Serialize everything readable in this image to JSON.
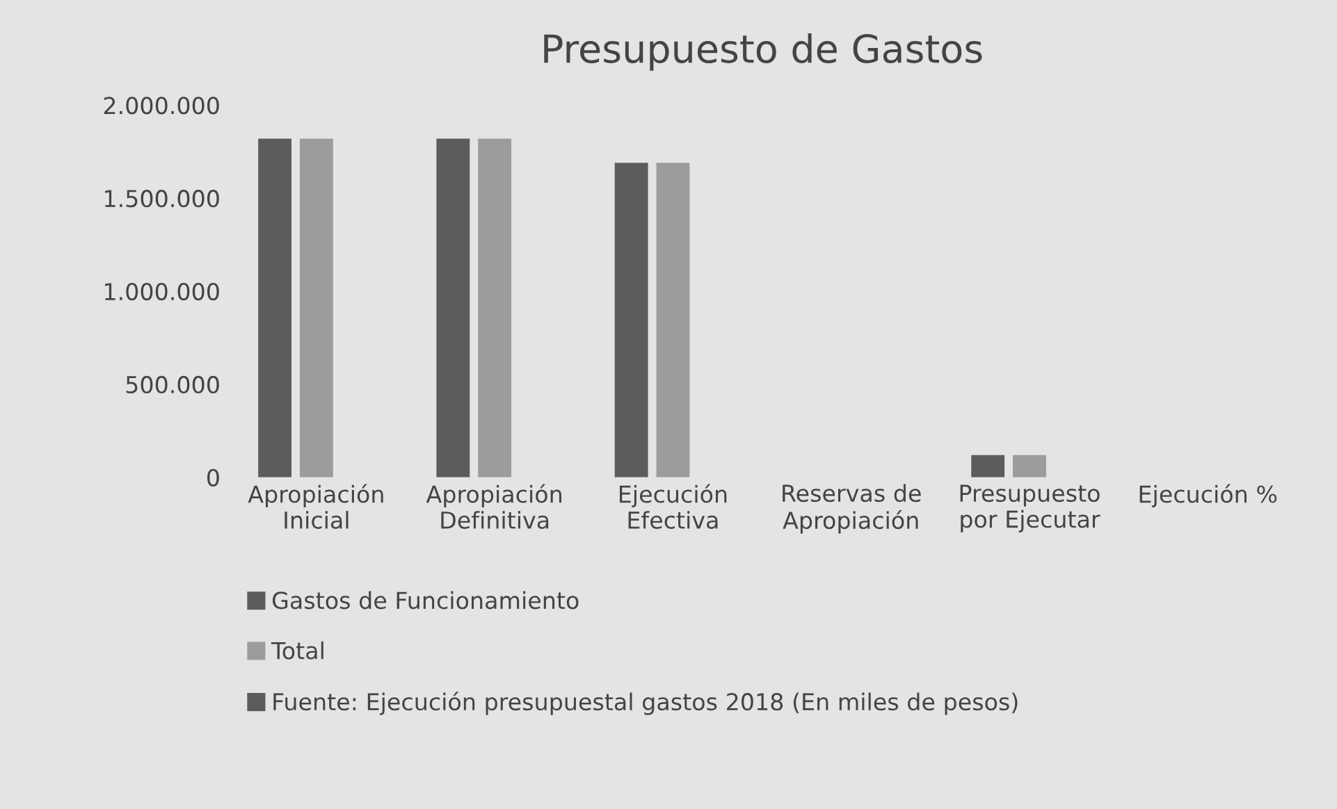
{
  "chart_data": {
    "type": "bar",
    "title": "Presupuesto de Gastos",
    "categories": [
      "Apropiación\nInicial",
      "Apropiación\nDefinitiva",
      "Ejecución\nEfectiva",
      "Reservas de\nApropiación",
      "Presupuesto\npor Ejecutar",
      "Ejecución %"
    ],
    "series": [
      {
        "name": "Gastos de Funcionamiento",
        "color": "#5c5c5c",
        "values": [
          1820000,
          1820000,
          1690000,
          0,
          120000,
          0
        ]
      },
      {
        "name": "Total",
        "color": "#9c9c9c",
        "values": [
          1820000,
          1820000,
          1690000,
          0,
          120000,
          0
        ]
      },
      {
        "name": "Fuente: Ejecución presupuestal gastos 2018 (En miles de pesos)",
        "color": "#5c5c5c",
        "values": [
          null,
          null,
          null,
          null,
          null,
          null
        ]
      }
    ],
    "ylim": [
      0,
      2000000
    ],
    "yticks": [
      {
        "value": 0,
        "label": "0"
      },
      {
        "value": 500000,
        "label": "500.000"
      },
      {
        "value": 1000000,
        "label": "1.000.000"
      },
      {
        "value": 1500000,
        "label": "1.500.000"
      },
      {
        "value": 2000000,
        "label": "2.000.000"
      }
    ],
    "grid": false,
    "legend": "bottom"
  }
}
